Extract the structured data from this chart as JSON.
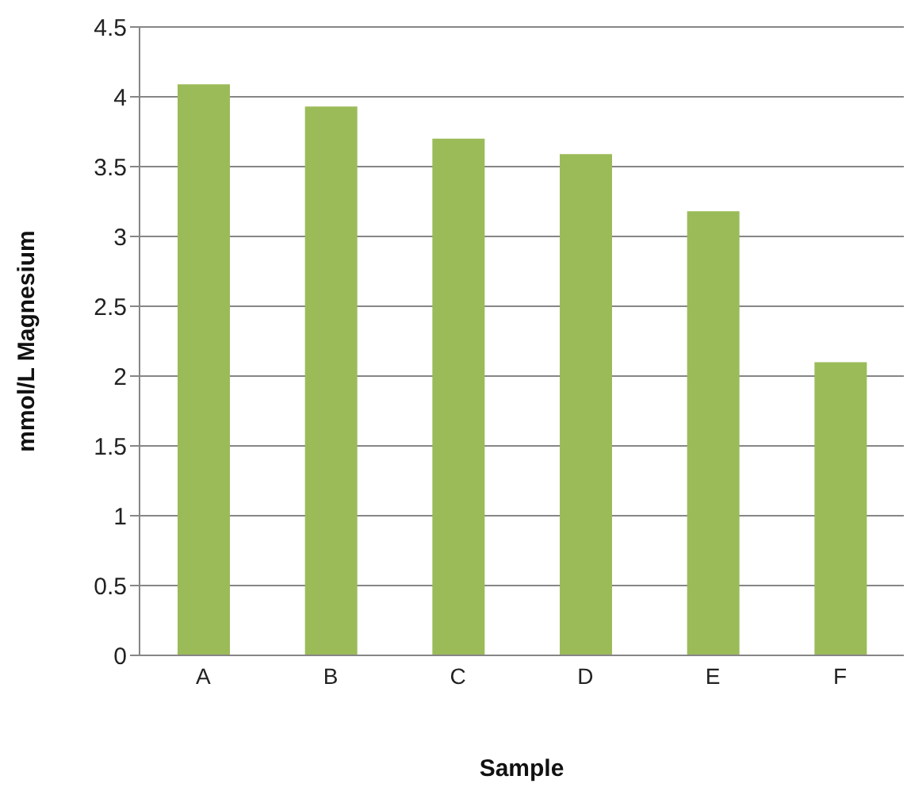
{
  "chart_data": {
    "type": "bar",
    "xlabel": "Sample",
    "ylabel": "mmol/L Magnesium",
    "categories": [
      "A",
      "B",
      "C",
      "D",
      "E",
      "F"
    ],
    "values": [
      4.09,
      3.93,
      3.7,
      3.59,
      3.18,
      2.1
    ],
    "color": "#9bbb59",
    "ylim": [
      0,
      4.5
    ],
    "yticks": [
      0,
      0.5,
      1,
      1.5,
      2,
      2.5,
      3,
      3.5,
      4,
      4.5
    ],
    "grid": "y"
  }
}
